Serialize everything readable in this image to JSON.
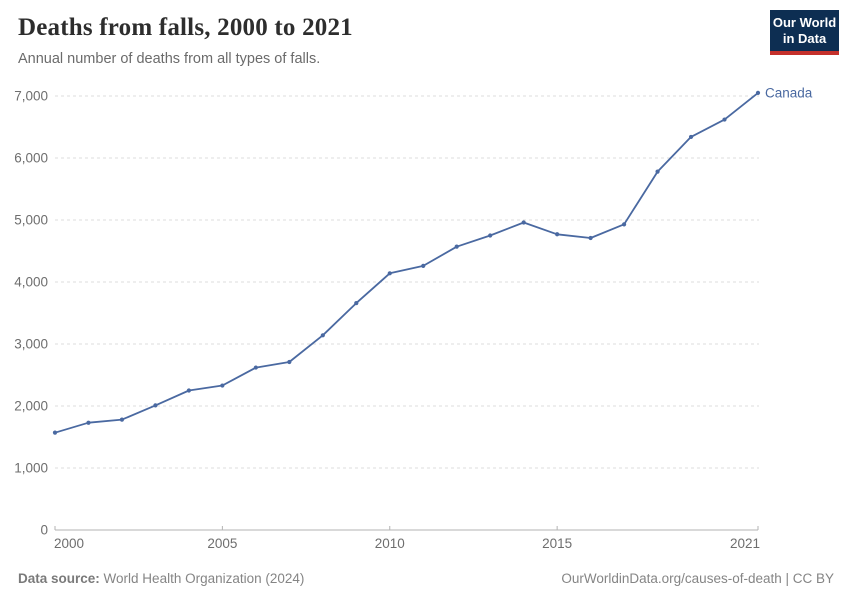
{
  "header": {
    "title": "Deaths from falls, 2000 to 2021",
    "subtitle": "Annual number of deaths from all types of falls.",
    "logo": {
      "line1": "Our World",
      "line2": "in Data"
    }
  },
  "chart_data": {
    "type": "line",
    "title": "Deaths from falls, 2000 to 2021",
    "xlabel": "",
    "ylabel": "",
    "x": [
      2000,
      2001,
      2002,
      2003,
      2004,
      2005,
      2006,
      2007,
      2008,
      2009,
      2010,
      2011,
      2012,
      2013,
      2014,
      2015,
      2016,
      2017,
      2018,
      2019,
      2020,
      2021
    ],
    "series": [
      {
        "name": "Canada",
        "values": [
          1570,
          1730,
          1780,
          2010,
          2250,
          2330,
          2620,
          2710,
          3140,
          3660,
          4140,
          4260,
          4570,
          4750,
          4960,
          4770,
          4710,
          4930,
          5780,
          6340,
          6620,
          7050
        ]
      }
    ],
    "ylim": [
      0,
      7000
    ],
    "yticks": [
      0,
      1000,
      2000,
      3000,
      4000,
      5000,
      6000,
      7000
    ],
    "xticks": [
      2000,
      2005,
      2010,
      2015,
      2021
    ],
    "grid": "horizontal-dashed",
    "legend_position": "end-of-line",
    "entity_label": "Canada"
  },
  "footer": {
    "source_label": "Data source:",
    "source": "World Health Organization (2024)",
    "citation": "OurWorldinData.org/causes-of-death | CC BY"
  },
  "colors": {
    "line": "#4a69a1",
    "grid": "#dcdcdc",
    "axis": "#b3b3b3",
    "tick_label": "#6e6e6e",
    "logo_bg": "#0d2e52",
    "logo_accent": "#c4302b",
    "title": "#2d2d2d",
    "subtitle": "#6b6b6b",
    "footer": "#858585"
  }
}
